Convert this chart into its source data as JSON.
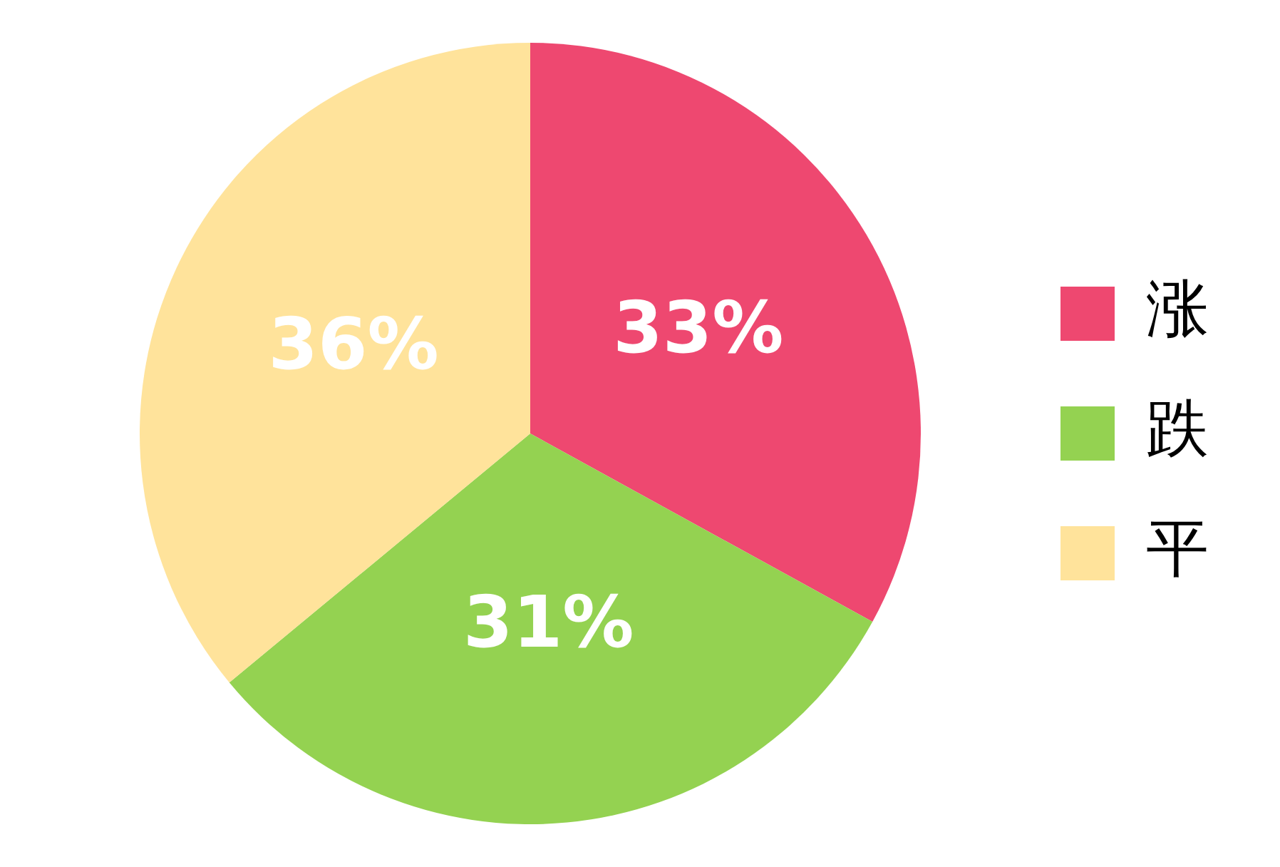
{
  "chart_data": {
    "type": "pie",
    "categories": [
      "涨",
      "跌",
      "平"
    ],
    "values": [
      33,
      31,
      36
    ],
    "colors": [
      "#ee4870",
      "#94d251",
      "#ffe39b"
    ],
    "value_labels": [
      "33%",
      "31%",
      "36%"
    ],
    "legend": "right"
  }
}
